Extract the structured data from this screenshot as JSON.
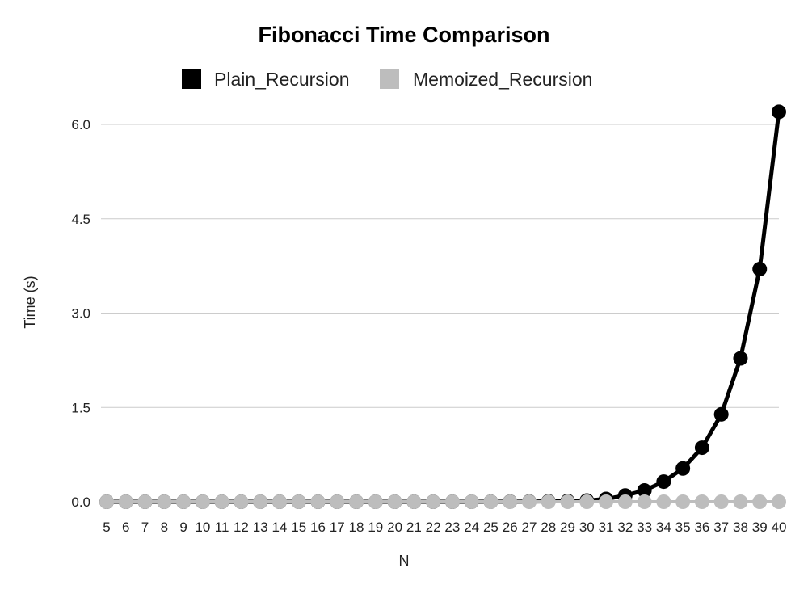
{
  "chart_data": {
    "type": "line",
    "title": "Fibonacci Time Comparison",
    "xlabel": "N",
    "ylabel": "Time (s)",
    "x": [
      5,
      6,
      7,
      8,
      9,
      10,
      11,
      12,
      13,
      14,
      15,
      16,
      17,
      18,
      19,
      20,
      21,
      22,
      23,
      24,
      25,
      26,
      27,
      28,
      29,
      30,
      31,
      32,
      33,
      34,
      35,
      36,
      37,
      38,
      39,
      40
    ],
    "ylim": [
      0,
      6.2
    ],
    "yticks": [
      "0.0",
      "1.5",
      "3.0",
      "4.5",
      "6.0"
    ],
    "grid": true,
    "legend_position": "top",
    "series": [
      {
        "name": "Plain_Recursion",
        "color": "#000000",
        "values": [
          0,
          0,
          0,
          0,
          0,
          0,
          0,
          0,
          0,
          0,
          0,
          0,
          0,
          0,
          0,
          0,
          0,
          0,
          0,
          0,
          0.001,
          0.002,
          0.004,
          0.007,
          0.012,
          0.02,
          0.045,
          0.1,
          0.18,
          0.32,
          0.53,
          0.86,
          1.39,
          2.28,
          3.7,
          6.2
        ]
      },
      {
        "name": "Memoized_Recursion",
        "color": "#bdbdbd",
        "values": [
          0,
          0,
          0,
          0,
          0,
          0,
          0,
          0,
          0,
          0,
          0,
          0,
          0,
          0,
          0,
          0,
          0,
          0,
          0,
          0,
          0,
          0,
          0,
          0,
          0,
          0,
          0,
          0,
          0,
          0,
          0,
          0,
          0,
          0,
          0,
          0
        ]
      }
    ]
  }
}
